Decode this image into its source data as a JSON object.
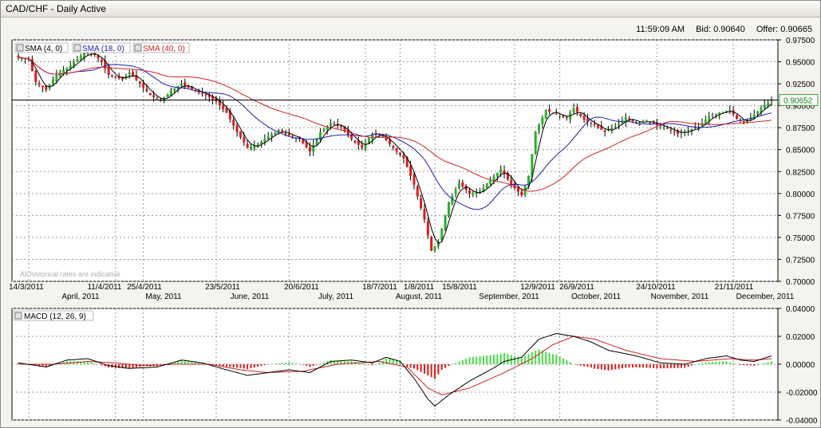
{
  "window": {
    "title": "CAD/CHF - Daily Active"
  },
  "quote": {
    "time": "11:59:09 AM",
    "bid": "Bid: 0.90640",
    "offer": "Offer: 0.90665"
  },
  "colors": {
    "up": "#2bb12b",
    "down": "#e01a1a",
    "sma_short": "#000000",
    "sma_mid": "#1f1fa8",
    "sma_long": "#cc2222",
    "macd": "#000000",
    "signal": "#cc2222",
    "grid": "#9a9a9a"
  },
  "chart_data": [
    {
      "type": "candlestick",
      "title": "CAD/CHF - Daily Active",
      "indicators": [
        "SMA (4, 0)",
        "SMA (18, 0)",
        "SMA (40, 0)"
      ],
      "indicator_icons": [
        "close-icon",
        "close-icon",
        "close-icon"
      ],
      "watermark": "All historical rates are indicative",
      "current_price_label": "0.90652",
      "current_price": 0.9065,
      "ylim": [
        0.7,
        0.975
      ],
      "yticks": [
        "0.97500",
        "0.95000",
        "0.92500",
        "0.90000",
        "0.87500",
        "0.85000",
        "0.82500",
        "0.80000",
        "0.77500",
        "0.75000",
        "0.72500",
        "0.70000"
      ],
      "x_day_labels": [
        "14/3/2011",
        "11/4/2011",
        "25/4/2011",
        "23/5/2011",
        "20/6/2011",
        "18/7/2011",
        "1/8/2011",
        "15/8/2011",
        "12/9/2011",
        "26/9/2011",
        "24/10/2011",
        "21/11/2011"
      ],
      "x_month_labels": [
        "April, 2011",
        "May, 2011",
        "June, 2011",
        "July, 2011",
        "August, 2011",
        "September, 2011",
        "October, 2011",
        "November, 2011",
        "December, 2011"
      ],
      "close_keypoints": [
        [
          0,
          0.955
        ],
        [
          3,
          0.952
        ],
        [
          5,
          0.927
        ],
        [
          8,
          0.918
        ],
        [
          11,
          0.935
        ],
        [
          15,
          0.946
        ],
        [
          19,
          0.96
        ],
        [
          22,
          0.958
        ],
        [
          24,
          0.95
        ],
        [
          26,
          0.935
        ],
        [
          30,
          0.93
        ],
        [
          32,
          0.938
        ],
        [
          35,
          0.925
        ],
        [
          38,
          0.912
        ],
        [
          41,
          0.905
        ],
        [
          44,
          0.917
        ],
        [
          47,
          0.925
        ],
        [
          50,
          0.918
        ],
        [
          54,
          0.912
        ],
        [
          57,
          0.905
        ],
        [
          60,
          0.892
        ],
        [
          63,
          0.87
        ],
        [
          66,
          0.852
        ],
        [
          69,
          0.856
        ],
        [
          72,
          0.865
        ],
        [
          75,
          0.872
        ],
        [
          78,
          0.866
        ],
        [
          81,
          0.862
        ],
        [
          84,
          0.848
        ],
        [
          87,
          0.87
        ],
        [
          90,
          0.88
        ],
        [
          93,
          0.876
        ],
        [
          96,
          0.862
        ],
        [
          99,
          0.852
        ],
        [
          102,
          0.868
        ],
        [
          105,
          0.865
        ],
        [
          108,
          0.852
        ],
        [
          111,
          0.84
        ],
        [
          114,
          0.81
        ],
        [
          117,
          0.77
        ],
        [
          119,
          0.735
        ],
        [
          121,
          0.745
        ],
        [
          124,
          0.79
        ],
        [
          127,
          0.812
        ],
        [
          130,
          0.8
        ],
        [
          133,
          0.802
        ],
        [
          136,
          0.815
        ],
        [
          139,
          0.828
        ],
        [
          142,
          0.81
        ],
        [
          145,
          0.798
        ],
        [
          147,
          0.82
        ],
        [
          149,
          0.87
        ],
        [
          152,
          0.895
        ],
        [
          155,
          0.89
        ],
        [
          158,
          0.886
        ],
        [
          160,
          0.897
        ],
        [
          163,
          0.884
        ],
        [
          166,
          0.878
        ],
        [
          169,
          0.87
        ],
        [
          172,
          0.877
        ],
        [
          175,
          0.887
        ],
        [
          178,
          0.88
        ],
        [
          181,
          0.883
        ],
        [
          184,
          0.878
        ],
        [
          187,
          0.874
        ],
        [
          190,
          0.868
        ],
        [
          193,
          0.872
        ],
        [
          196,
          0.876
        ],
        [
          199,
          0.888
        ],
        [
          202,
          0.892
        ],
        [
          205,
          0.895
        ],
        [
          207,
          0.885
        ],
        [
          209,
          0.88
        ],
        [
          212,
          0.89
        ],
        [
          215,
          0.901
        ],
        [
          217,
          0.906
        ]
      ],
      "macd_panel": {
        "title": "MACD (12, 26, 9)",
        "title_icon": "close-icon",
        "ylim": [
          -0.04,
          0.04
        ],
        "yticks": [
          "0.04000",
          "0.02000",
          "0.00000",
          "-0.02000",
          "-0.04000"
        ],
        "macd_keypoints": [
          [
            0,
            0.001
          ],
          [
            8,
            -0.002
          ],
          [
            14,
            0.003
          ],
          [
            20,
            0.004
          ],
          [
            26,
            -0.001
          ],
          [
            32,
            -0.003
          ],
          [
            40,
            -0.002
          ],
          [
            47,
            0.003
          ],
          [
            53,
            0.001
          ],
          [
            60,
            -0.004
          ],
          [
            66,
            -0.008
          ],
          [
            72,
            -0.006
          ],
          [
            78,
            -0.004
          ],
          [
            84,
            -0.006
          ],
          [
            90,
            0.002
          ],
          [
            96,
            0.003
          ],
          [
            102,
            0.001
          ],
          [
            106,
            0.005
          ],
          [
            110,
            0.002
          ],
          [
            114,
            -0.01
          ],
          [
            118,
            -0.025
          ],
          [
            120,
            -0.03
          ],
          [
            124,
            -0.022
          ],
          [
            130,
            -0.012
          ],
          [
            136,
            -0.004
          ],
          [
            140,
            0.002
          ],
          [
            145,
            0.005
          ],
          [
            150,
            0.018
          ],
          [
            155,
            0.022
          ],
          [
            160,
            0.02
          ],
          [
            165,
            0.016
          ],
          [
            170,
            0.01
          ],
          [
            178,
            0.006
          ],
          [
            185,
            0.001
          ],
          [
            192,
            0.0
          ],
          [
            198,
            0.004
          ],
          [
            204,
            0.006
          ],
          [
            208,
            0.003
          ],
          [
            212,
            0.002
          ],
          [
            217,
            0.006
          ]
        ],
        "signal_keypoints": [
          [
            0,
            0.0
          ],
          [
            10,
            0.0
          ],
          [
            20,
            0.002
          ],
          [
            28,
            0.001
          ],
          [
            36,
            -0.001
          ],
          [
            45,
            0.0
          ],
          [
            55,
            0.0
          ],
          [
            64,
            -0.004
          ],
          [
            72,
            -0.006
          ],
          [
            82,
            -0.005
          ],
          [
            92,
            0.0
          ],
          [
            104,
            0.002
          ],
          [
            112,
            -0.002
          ],
          [
            118,
            -0.017
          ],
          [
            122,
            -0.022
          ],
          [
            130,
            -0.017
          ],
          [
            140,
            -0.006
          ],
          [
            148,
            0.004
          ],
          [
            154,
            0.014
          ],
          [
            160,
            0.02
          ],
          [
            166,
            0.018
          ],
          [
            175,
            0.01
          ],
          [
            185,
            0.004
          ],
          [
            195,
            0.002
          ],
          [
            205,
            0.004
          ],
          [
            212,
            0.003
          ],
          [
            217,
            0.004
          ]
        ]
      }
    }
  ]
}
